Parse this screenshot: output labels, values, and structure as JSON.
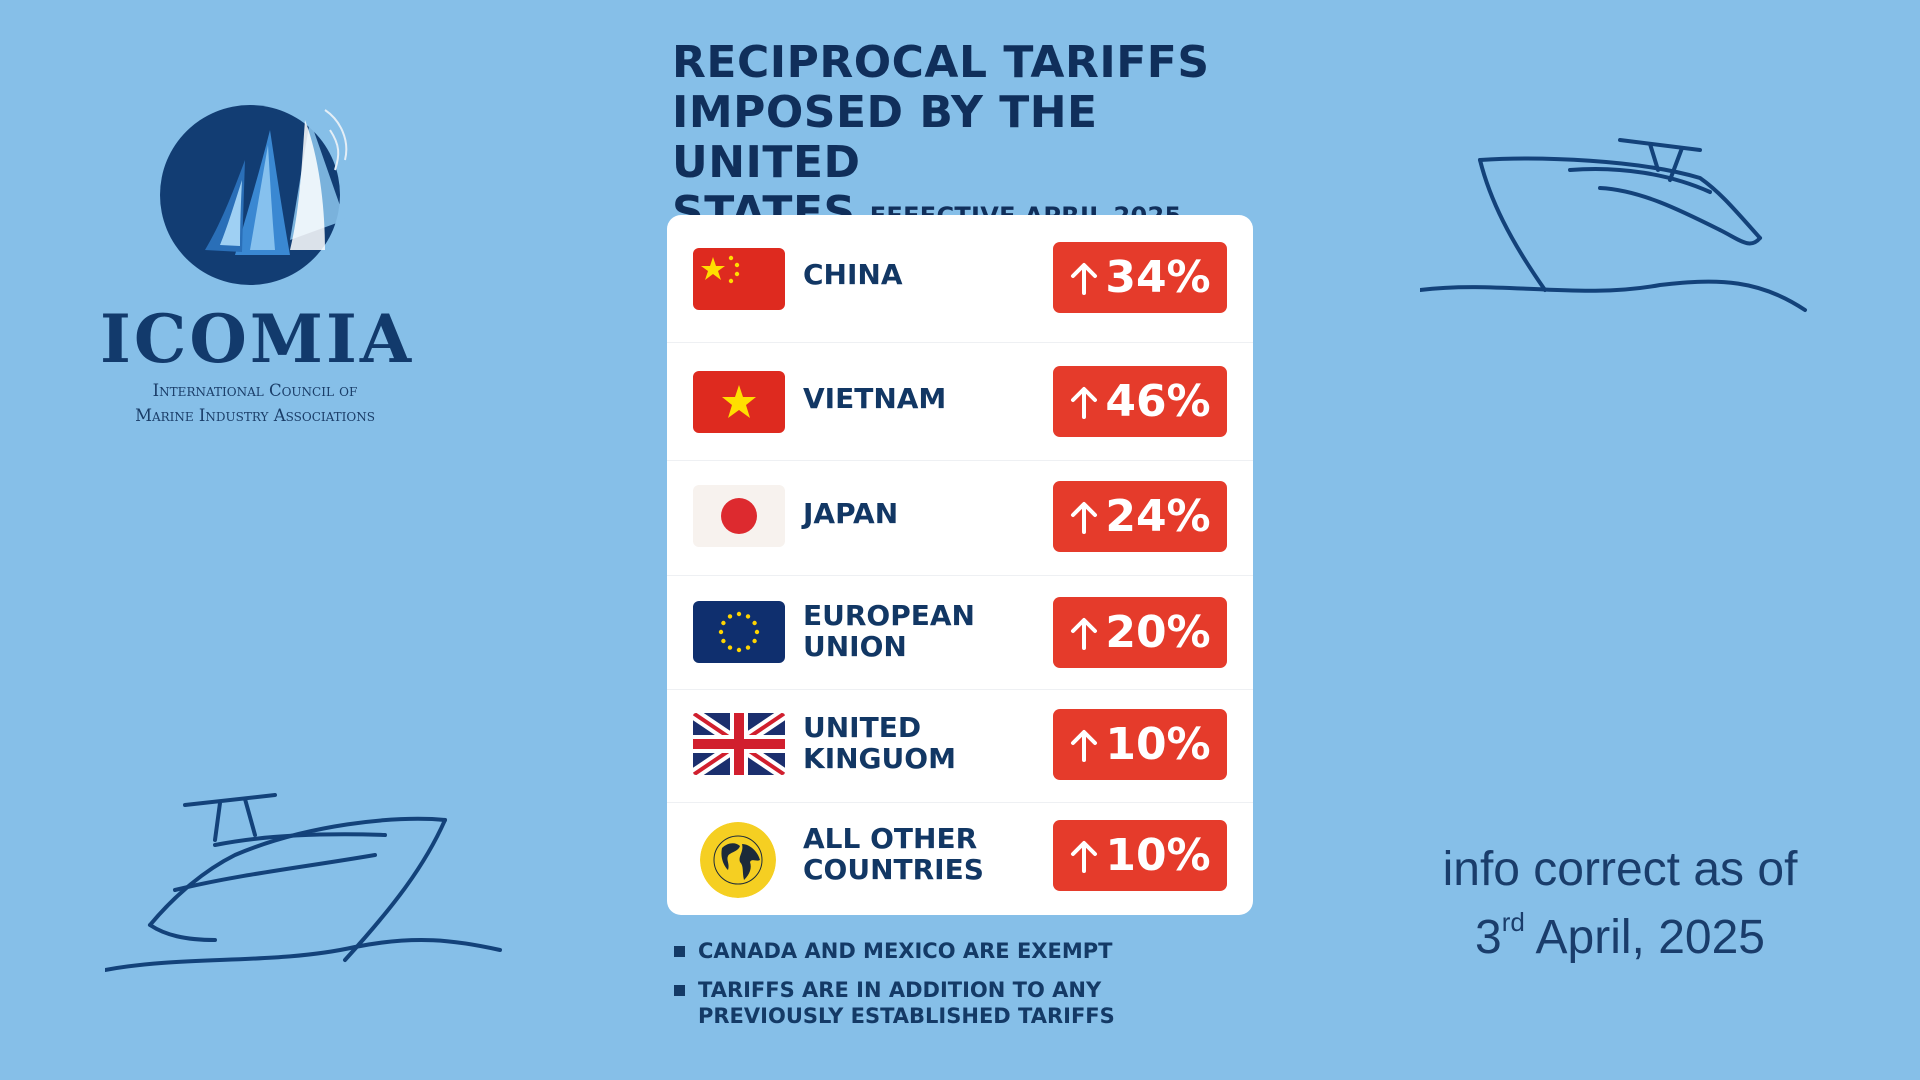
{
  "logo": {
    "wordmark": "ICOMIA",
    "subtitle_line1": "International Council of",
    "subtitle_line2": "Marine Industry Associations"
  },
  "headline": {
    "title_line1": "RECIPROCAL TARIFFS",
    "title_line2": "IMPOSED BY THE UNITED",
    "title_line3": "STATES",
    "effective": "EFFECTIVE APRIL 2025"
  },
  "tariffs": [
    {
      "country": "CHINA",
      "country_line2": "",
      "rate": "34%",
      "flag": "china-flag-icon"
    },
    {
      "country": "VIETNAM",
      "country_line2": "",
      "rate": "46%",
      "flag": "vietnam-flag-icon"
    },
    {
      "country": "JAPAN",
      "country_line2": "",
      "rate": "24%",
      "flag": "japan-flag-icon"
    },
    {
      "country": "EUROPEAN",
      "country_line2": "UNION",
      "rate": "20%",
      "flag": "eu-flag-icon"
    },
    {
      "country": "UNITED",
      "country_line2": "KINGUOM",
      "rate": "10%",
      "flag": "uk-flag-icon"
    },
    {
      "country": "ALL OTHER",
      "country_line2": "COUNTRIES",
      "rate": "10%",
      "flag": "globe-icon"
    }
  ],
  "notes": {
    "note1": "CANADA AND MEXICO ARE EXEMPT",
    "note2_line1": "TARIFFS ARE IN ADDITION TO ANY",
    "note2_line2": "PREVIOUSLY ESTABLISHED TARIFFS"
  },
  "info": {
    "line1": "info correct as of",
    "day": "3",
    "ordinal": "rd",
    "date_rest": " April, 2025"
  },
  "colors": {
    "background": "#86bfe8",
    "navy": "#102f5b",
    "badge_red": "#e53b2b",
    "card": "#ffffff"
  }
}
